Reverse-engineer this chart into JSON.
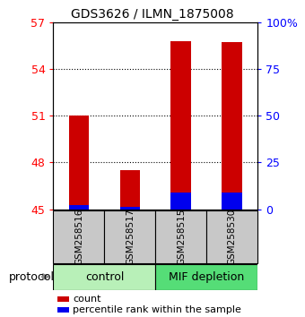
{
  "title": "GDS3626 / ILMN_1875008",
  "samples": [
    "GSM258516",
    "GSM258517",
    "GSM258515",
    "GSM258530"
  ],
  "group_labels": [
    "control",
    "MIF depletion"
  ],
  "bar_color_red": "#CC0000",
  "bar_color_blue": "#0000EE",
  "red_values": [
    51.0,
    47.5,
    55.8,
    55.7
  ],
  "blue_values": [
    45.25,
    45.15,
    46.05,
    46.05
  ],
  "ymin": 45,
  "ymax": 57,
  "yticks_left": [
    45,
    48,
    51,
    54,
    57
  ],
  "yright_labels": [
    "0",
    "25",
    "50",
    "75",
    "100%"
  ],
  "background_color": "#ffffff",
  "sample_box_color": "#c8c8c8",
  "ctrl_color": "#b8f0b8",
  "mif_color": "#55dd77",
  "legend_count_label": "count",
  "legend_pct_label": "percentile rank within the sample",
  "protocol_label": "protocol"
}
